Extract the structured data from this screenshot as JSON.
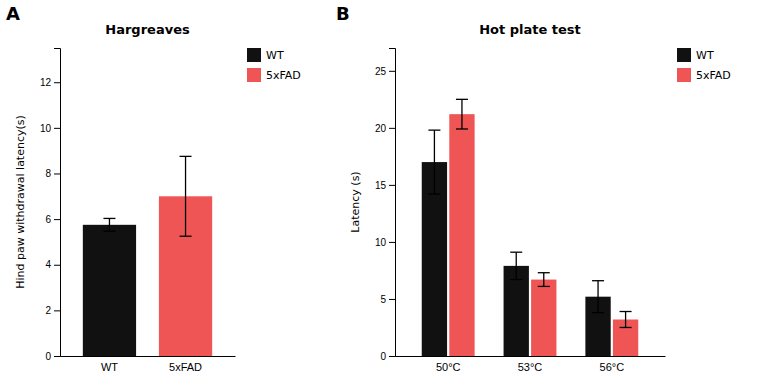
{
  "chart_data": [
    {
      "type": "bar",
      "title": "Hargreaves",
      "ylabel": "Hind paw withdrawal latency(s)",
      "annotations": [
        "A"
      ],
      "categories": [
        "WT",
        "5xFAD"
      ],
      "values": [
        5.75,
        7.0
      ],
      "errors": [
        0.28,
        1.75
      ],
      "colors": [
        "#111111",
        "#f05555"
      ],
      "ylim": [
        0,
        13.5
      ],
      "yticks": [
        0,
        2,
        4,
        6,
        8,
        10,
        12
      ],
      "grid": false,
      "legend": "right"
    },
    {
      "type": "bar",
      "title": "Hot plate test",
      "ylabel": "Latency (s)",
      "annotations": [
        "B"
      ],
      "categories": [
        "50°C",
        "53°C",
        "56°C"
      ],
      "series": [
        {
          "name": "WT",
          "color": "#111111",
          "values": [
            17.0,
            7.9,
            5.2
          ],
          "errors": [
            2.8,
            1.2,
            1.4
          ]
        },
        {
          "name": "5xFAD",
          "color": "#f05555",
          "values": [
            21.2,
            6.7,
            3.2
          ],
          "errors": [
            1.3,
            0.6,
            0.7
          ]
        }
      ],
      "ylim": [
        0,
        27
      ],
      "yticks": [
        0,
        5,
        10,
        15,
        20,
        25
      ],
      "grid": false,
      "legend": "right"
    }
  ]
}
